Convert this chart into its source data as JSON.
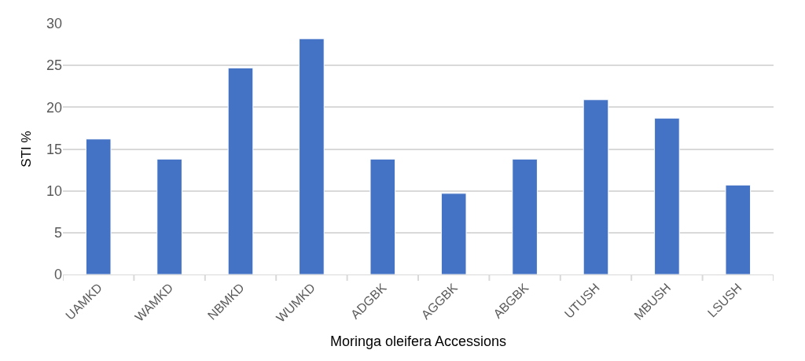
{
  "chart_data": {
    "type": "bar",
    "xlabel": "Moringa oleifera Accessions",
    "ylabel": "STI %",
    "categories": [
      "UAMKD",
      "WAMKD",
      "NBMKD",
      "WUMKD",
      "ADGBK",
      "AGGBK",
      "ABGBK",
      "UTUSH",
      "MBUSH",
      "LSUSH"
    ],
    "values": [
      16.2,
      13.8,
      24.7,
      28.2,
      13.8,
      9.7,
      13.8,
      20.9,
      18.7,
      10.7
    ],
    "color": "#4472c4",
    "ylim": [
      0,
      30
    ],
    "yticks": [
      0,
      5,
      10,
      15,
      20,
      25,
      30
    ],
    "grid": "y"
  }
}
